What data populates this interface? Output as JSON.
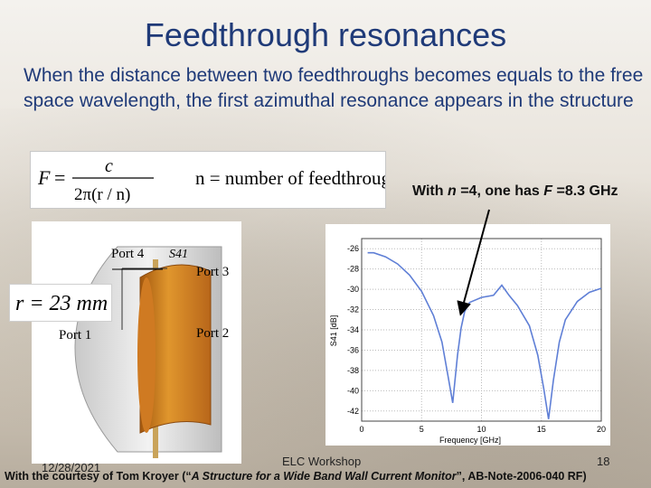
{
  "title": "Feedthrough resonances",
  "intro": "When the distance between two feedthroughs becomes equals to the free space wavelength, the first azimuthal resonance appears in the structure",
  "formula": {
    "lhs": "F",
    "numerator": "c",
    "denominator": "2π(r / n)",
    "definition": "n = number of feedthrough"
  },
  "note": {
    "prefix": "With",
    "n_var": "n",
    "n_val": "=4, one has",
    "f_var": "F",
    "f_val": "=8.3 GHz"
  },
  "structure": {
    "port4": "Port 4",
    "s41": "S41",
    "port3": "Port 3",
    "port1": "Port 1",
    "port2": "Port 2",
    "radius": "r = 23 mm"
  },
  "plot": {
    "xlabel": "Frequency [GHz]",
    "ylabel": "S41 [dB]",
    "xticks": [
      "0",
      "5",
      "10",
      "15",
      "20"
    ],
    "yticks": [
      "-26",
      "-28",
      "-30",
      "-32",
      "-34",
      "-36",
      "-38",
      "-40",
      "-42"
    ]
  },
  "chart_data": {
    "type": "line",
    "xlabel": "Frequency [GHz]",
    "ylabel": "S41 [dB]",
    "xlim": [
      0,
      20
    ],
    "ylim": [
      -43,
      -25
    ],
    "grid": true,
    "x": [
      0.5,
      1,
      2,
      3,
      4,
      5,
      6,
      6.7,
      7.2,
      7.6,
      8.0,
      8.3,
      8.6,
      9,
      10,
      11,
      11.7,
      12.3,
      13,
      14,
      14.7,
      15.2,
      15.6,
      16,
      16.5,
      17,
      18,
      19,
      20
    ],
    "y": [
      -26.4,
      -26.4,
      -26.8,
      -27.5,
      -28.6,
      -30.2,
      -32.6,
      -35.2,
      -38.5,
      -41.2,
      -36.5,
      -33.8,
      -32.2,
      -31.3,
      -30.8,
      -30.6,
      -29.6,
      -30.6,
      -31.6,
      -33.6,
      -36.5,
      -39.8,
      -42.8,
      -39.0,
      -35.2,
      -33.0,
      -31.2,
      -30.3,
      -29.9
    ]
  },
  "footer": {
    "date": "12/28/2021",
    "workshop": "ELC Workshop",
    "page": "18",
    "courtesy_prefix": "With the courtesy of Tom Kroyer (“",
    "courtesy_title": "A Structure for a Wide Band Wall Current Monitor",
    "courtesy_suffix": "”, AB-Note-2006-040 RF)"
  },
  "colors": {
    "title": "#1f3a78",
    "curve": "#5f7fd6",
    "copper": "#d68a28"
  }
}
